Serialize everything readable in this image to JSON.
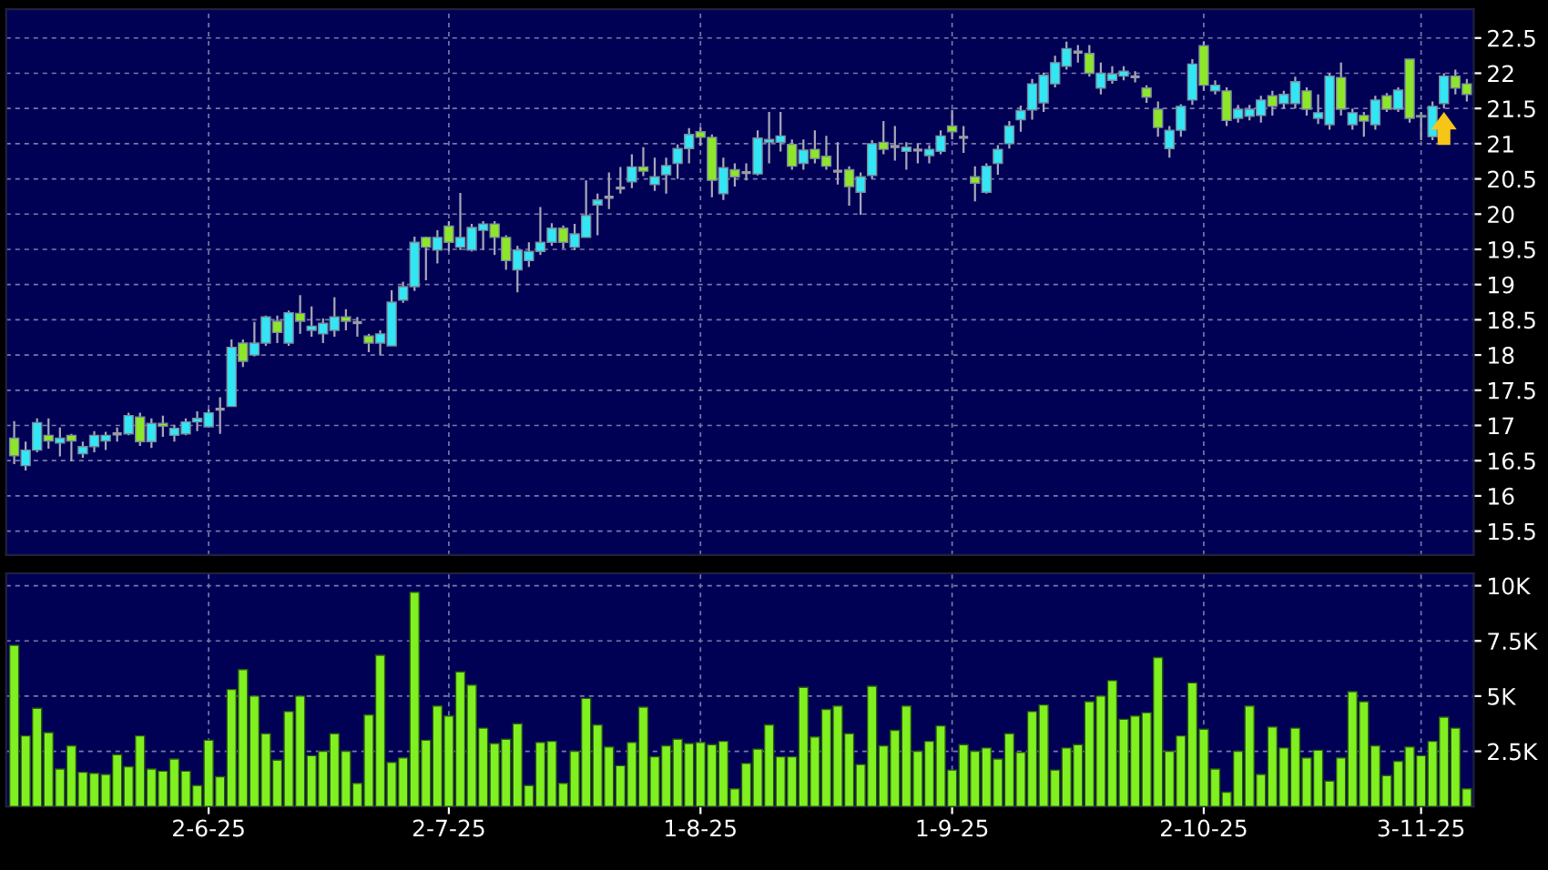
{
  "chart_data": [
    {
      "type": "candlestick",
      "ylim": [
        15.16,
        22.91
      ],
      "yticks": [
        15.5,
        16,
        16.5,
        17,
        17.5,
        18,
        18.5,
        19,
        19.5,
        20,
        20.5,
        21,
        21.5,
        22,
        22.5
      ],
      "grid": true,
      "tick_labels": "y",
      "categories": [
        null,
        null,
        null,
        null,
        null,
        null,
        null,
        null,
        null,
        null,
        null,
        null,
        null,
        null,
        null,
        null,
        null,
        null,
        null,
        null,
        null,
        null,
        null,
        null,
        null,
        null,
        null,
        null,
        null,
        null,
        null,
        null,
        null,
        null,
        null,
        null,
        null,
        null,
        null,
        null,
        null,
        null,
        null,
        null,
        null,
        null,
        null,
        null,
        null,
        null,
        null,
        null,
        null,
        null,
        null,
        null,
        null,
        null,
        null,
        null,
        null,
        null,
        null,
        null,
        null,
        null,
        null,
        null,
        null,
        null,
        null,
        null,
        null,
        null,
        null,
        null,
        null,
        null,
        null,
        null,
        null,
        null,
        null,
        null,
        null,
        null,
        null,
        null,
        null,
        null,
        null,
        null,
        null,
        null,
        null,
        null,
        null,
        null,
        null,
        null,
        null,
        null,
        null,
        null,
        null,
        null,
        null,
        null,
        null,
        null,
        null,
        null,
        null,
        null,
        null,
        null,
        null,
        null,
        null,
        null,
        null,
        null,
        null,
        null,
        null,
        null,
        null,
        null
      ],
      "ohlc": [
        [
          16.82,
          17.06,
          16.45,
          16.57
        ],
        [
          16.43,
          16.77,
          16.36,
          16.65
        ],
        [
          16.65,
          17.1,
          16.62,
          17.04
        ],
        [
          16.86,
          17.1,
          16.67,
          16.78
        ],
        [
          16.75,
          16.97,
          16.56,
          16.82
        ],
        [
          16.86,
          16.88,
          16.49,
          16.78
        ],
        [
          16.6,
          16.77,
          16.54,
          16.7
        ],
        [
          16.7,
          16.92,
          16.62,
          16.86
        ],
        [
          16.78,
          16.91,
          16.65,
          16.86
        ],
        [
          16.88,
          16.97,
          16.77,
          16.88
        ],
        [
          16.88,
          17.18,
          16.86,
          17.14
        ],
        [
          17.12,
          17.18,
          16.71,
          16.77
        ],
        [
          16.77,
          17.1,
          16.68,
          17.03
        ],
        [
          17.03,
          17.14,
          16.84,
          16.99
        ],
        [
          16.86,
          17.01,
          16.77,
          16.96
        ],
        [
          16.88,
          17.1,
          16.86,
          17.05
        ],
        [
          17.05,
          17.2,
          16.92,
          17.1
        ],
        [
          16.98,
          17.23,
          16.97,
          17.18
        ],
        [
          17.23,
          17.4,
          16.88,
          17.23
        ],
        [
          17.27,
          18.22,
          17.27,
          18.11
        ],
        [
          18.17,
          18.22,
          17.83,
          17.91
        ],
        [
          18.0,
          18.47,
          17.98,
          18.17
        ],
        [
          18.17,
          18.56,
          18.13,
          18.54
        ],
        [
          18.48,
          18.56,
          18.17,
          18.32
        ],
        [
          18.17,
          18.63,
          18.13,
          18.6
        ],
        [
          18.59,
          18.85,
          18.3,
          18.48
        ],
        [
          18.35,
          18.69,
          18.26,
          18.41
        ],
        [
          18.3,
          18.52,
          18.17,
          18.45
        ],
        [
          18.35,
          18.82,
          18.26,
          18.54
        ],
        [
          18.54,
          18.65,
          18.35,
          18.48
        ],
        [
          18.46,
          18.54,
          18.26,
          18.46
        ],
        [
          18.27,
          18.3,
          18.04,
          18.17
        ],
        [
          18.17,
          18.35,
          18.0,
          18.3
        ],
        [
          18.13,
          18.92,
          18.13,
          18.75
        ],
        [
          18.78,
          19.04,
          18.74,
          18.97
        ],
        [
          18.97,
          19.68,
          18.91,
          19.6
        ],
        [
          19.67,
          19.68,
          19.06,
          19.53
        ],
        [
          19.49,
          19.77,
          19.3,
          19.67
        ],
        [
          19.83,
          19.9,
          19.47,
          19.6
        ],
        [
          19.53,
          20.3,
          19.49,
          19.67
        ],
        [
          19.49,
          19.86,
          19.47,
          19.81
        ],
        [
          19.77,
          19.9,
          19.49,
          19.86
        ],
        [
          19.86,
          19.9,
          19.42,
          19.67
        ],
        [
          19.67,
          19.7,
          19.21,
          19.34
        ],
        [
          19.21,
          19.55,
          18.89,
          19.49
        ],
        [
          19.34,
          19.6,
          19.25,
          19.47
        ],
        [
          19.47,
          20.1,
          19.42,
          19.6
        ],
        [
          19.6,
          19.87,
          19.55,
          19.8
        ],
        [
          19.8,
          19.84,
          19.51,
          19.6
        ],
        [
          19.53,
          19.86,
          19.49,
          19.72
        ],
        [
          19.67,
          20.48,
          19.67,
          19.98
        ],
        [
          20.13,
          20.29,
          19.7,
          20.2
        ],
        [
          20.24,
          20.59,
          20.07,
          20.24
        ],
        [
          20.37,
          20.67,
          20.29,
          20.37
        ],
        [
          20.46,
          20.85,
          20.37,
          20.67
        ],
        [
          20.67,
          20.95,
          20.54,
          20.61
        ],
        [
          20.42,
          20.8,
          20.33,
          20.53
        ],
        [
          20.56,
          20.8,
          20.29,
          20.69
        ],
        [
          20.72,
          20.99,
          20.5,
          20.93
        ],
        [
          20.93,
          21.22,
          20.72,
          21.13
        ],
        [
          21.17,
          21.23,
          20.97,
          21.09
        ],
        [
          21.09,
          21.13,
          20.24,
          20.48
        ],
        [
          20.29,
          20.8,
          20.2,
          20.66
        ],
        [
          20.63,
          20.72,
          20.39,
          20.53
        ],
        [
          20.59,
          20.72,
          20.48,
          20.59
        ],
        [
          20.57,
          21.19,
          20.55,
          21.08
        ],
        [
          21.02,
          21.45,
          20.72,
          21.06
        ],
        [
          21.02,
          21.45,
          20.89,
          21.11
        ],
        [
          20.99,
          21.06,
          20.63,
          20.68
        ],
        [
          20.72,
          21.06,
          20.63,
          20.91
        ],
        [
          20.92,
          21.19,
          20.72,
          20.79
        ],
        [
          20.82,
          21.11,
          20.63,
          20.68
        ],
        [
          20.61,
          21.02,
          20.42,
          20.61
        ],
        [
          20.63,
          20.68,
          20.12,
          20.39
        ],
        [
          20.31,
          20.59,
          19.99,
          20.53
        ],
        [
          20.55,
          21.05,
          20.5,
          21.0
        ],
        [
          21.02,
          21.32,
          20.85,
          20.92
        ],
        [
          20.96,
          21.25,
          20.76,
          20.96
        ],
        [
          20.89,
          21.02,
          20.63,
          20.95
        ],
        [
          20.91,
          21.0,
          20.72,
          20.91
        ],
        [
          20.83,
          20.98,
          20.72,
          20.92
        ],
        [
          20.89,
          21.19,
          20.85,
          21.11
        ],
        [
          21.25,
          21.48,
          21.06,
          21.17
        ],
        [
          21.09,
          21.25,
          20.87,
          21.09
        ],
        [
          20.53,
          20.68,
          20.18,
          20.44
        ],
        [
          20.31,
          20.72,
          20.29,
          20.68
        ],
        [
          20.72,
          20.98,
          20.56,
          20.92
        ],
        [
          21.0,
          21.32,
          20.93,
          21.25
        ],
        [
          21.34,
          21.54,
          21.17,
          21.47
        ],
        [
          21.48,
          21.92,
          21.34,
          21.85
        ],
        [
          21.58,
          22.01,
          21.45,
          21.97
        ],
        [
          21.85,
          22.25,
          21.8,
          22.15
        ],
        [
          22.1,
          22.45,
          22.05,
          22.35
        ],
        [
          22.3,
          22.4,
          22.15,
          22.3
        ],
        [
          22.28,
          22.4,
          21.95,
          22.0
        ],
        [
          21.79,
          22.15,
          21.7,
          22.0
        ],
        [
          21.9,
          22.1,
          21.85,
          21.99
        ],
        [
          21.96,
          22.1,
          21.9,
          22.03
        ],
        [
          21.95,
          22.03,
          21.87,
          21.95
        ],
        [
          21.79,
          21.83,
          21.58,
          21.66
        ],
        [
          21.49,
          21.6,
          21.1,
          21.23
        ],
        [
          20.93,
          21.25,
          20.8,
          21.19
        ],
        [
          21.19,
          21.56,
          21.1,
          21.53
        ],
        [
          21.62,
          22.2,
          21.55,
          22.13
        ],
        [
          22.39,
          22.45,
          21.75,
          21.83
        ],
        [
          21.75,
          21.9,
          21.7,
          21.83
        ],
        [
          21.75,
          21.8,
          21.25,
          21.33
        ],
        [
          21.36,
          21.55,
          21.3,
          21.49
        ],
        [
          21.39,
          21.55,
          21.33,
          21.49
        ],
        [
          21.4,
          21.68,
          21.3,
          21.62
        ],
        [
          21.68,
          21.75,
          21.4,
          21.53
        ],
        [
          21.57,
          21.75,
          21.5,
          21.7
        ],
        [
          21.57,
          21.95,
          21.5,
          21.88
        ],
        [
          21.75,
          21.8,
          21.4,
          21.49
        ],
        [
          21.36,
          21.7,
          21.28,
          21.44
        ],
        [
          21.27,
          22.0,
          21.2,
          21.96
        ],
        [
          21.94,
          22.15,
          21.4,
          21.49
        ],
        [
          21.27,
          21.5,
          21.2,
          21.44
        ],
        [
          21.4,
          21.45,
          21.1,
          21.32
        ],
        [
          21.27,
          21.68,
          21.2,
          21.62
        ],
        [
          21.68,
          21.72,
          21.45,
          21.49
        ],
        [
          21.49,
          21.8,
          21.45,
          21.76
        ],
        [
          22.2,
          22.2,
          21.3,
          21.36
        ],
        [
          21.4,
          21.45,
          21.05,
          21.38
        ],
        [
          21.1,
          21.6,
          21.05,
          21.53
        ],
        [
          21.57,
          22.0,
          21.5,
          21.96
        ],
        [
          21.96,
          22.05,
          21.7,
          21.79
        ],
        [
          21.85,
          21.92,
          21.6,
          21.7
        ]
      ],
      "colors": [
        "#8ee62a",
        "#33e6f5",
        "#33e6f5",
        "#8ee62a",
        "#33e6f5",
        "#8ee62a",
        "#33e6f5",
        "#33e6f5",
        "#33e6f5",
        "#9a9aa8",
        "#33e6f5",
        "#8ee62a",
        "#33e6f5",
        "#8ee62a",
        "#33e6f5",
        "#33e6f5",
        "#33e6f5",
        "#33e6f5",
        "#9a9aa8",
        "#33e6f5",
        "#8ee62a",
        "#33e6f5",
        "#33e6f5",
        "#8ee62a",
        "#33e6f5",
        "#8ee62a",
        "#33e6f5",
        "#33e6f5",
        "#33e6f5",
        "#8ee62a",
        "#9a9aa8",
        "#8ee62a",
        "#33e6f5",
        "#33e6f5",
        "#33e6f5",
        "#33e6f5",
        "#8ee62a",
        "#33e6f5",
        "#8ee62a",
        "#33e6f5",
        "#33e6f5",
        "#33e6f5",
        "#8ee62a",
        "#8ee62a",
        "#33e6f5",
        "#33e6f5",
        "#33e6f5",
        "#33e6f5",
        "#8ee62a",
        "#33e6f5",
        "#33e6f5",
        "#33e6f5",
        "#9a9aa8",
        "#9a9aa8",
        "#33e6f5",
        "#8ee62a",
        "#33e6f5",
        "#33e6f5",
        "#33e6f5",
        "#33e6f5",
        "#8ee62a",
        "#8ee62a",
        "#33e6f5",
        "#8ee62a",
        "#9a9aa8",
        "#33e6f5",
        "#33e6f5",
        "#33e6f5",
        "#8ee62a",
        "#33e6f5",
        "#8ee62a",
        "#8ee62a",
        "#9a9aa8",
        "#8ee62a",
        "#33e6f5",
        "#33e6f5",
        "#8ee62a",
        "#9a9aa8",
        "#33e6f5",
        "#9a9aa8",
        "#33e6f5",
        "#33e6f5",
        "#8ee62a",
        "#9a9aa8",
        "#8ee62a",
        "#33e6f5",
        "#33e6f5",
        "#33e6f5",
        "#33e6f5",
        "#33e6f5",
        "#33e6f5",
        "#33e6f5",
        "#33e6f5",
        "#9a9aa8",
        "#8ee62a",
        "#33e6f5",
        "#33e6f5",
        "#33e6f5",
        "#9a9aa8",
        "#8ee62a",
        "#8ee62a",
        "#33e6f5",
        "#33e6f5",
        "#33e6f5",
        "#8ee62a",
        "#33e6f5",
        "#8ee62a",
        "#33e6f5",
        "#33e6f5",
        "#33e6f5",
        "#8ee62a",
        "#33e6f5",
        "#33e6f5",
        "#8ee62a",
        "#33e6f5",
        "#33e6f5",
        "#8ee62a",
        "#33e6f5",
        "#8ee62a",
        "#33e6f5",
        "#8ee62a",
        "#33e6f5",
        "#8ee62a",
        "#8ee62a",
        "#33e6f5",
        "#33e6f5",
        "#8ee62a",
        "#8ee62a"
      ]
    },
    {
      "type": "bar",
      "ylim": [
        0,
        10560
      ],
      "yticks": [
        {
          "value": 2500,
          "label": "2.5K"
        },
        {
          "value": 5000,
          "label": "5K"
        },
        {
          "value": 7500,
          "label": "7.5K"
        },
        {
          "value": 10000,
          "label": "10K"
        }
      ],
      "grid": true,
      "color": "#80f020",
      "categories": [
        null,
        null,
        null,
        null,
        null,
        null,
        null,
        null,
        null,
        null,
        null,
        null,
        null,
        null,
        null,
        null,
        null,
        "2-6-25",
        null,
        null,
        null,
        null,
        null,
        null,
        null,
        null,
        null,
        null,
        null,
        null,
        null,
        null,
        null,
        null,
        null,
        null,
        null,
        null,
        "2-7-25",
        null,
        null,
        null,
        null,
        null,
        null,
        null,
        null,
        null,
        null,
        null,
        null,
        null,
        null,
        null,
        null,
        null,
        null,
        null,
        null,
        null,
        "1-8-25",
        null,
        null,
        null,
        null,
        null,
        null,
        null,
        null,
        null,
        null,
        null,
        null,
        null,
        null,
        null,
        null,
        null,
        null,
        null,
        null,
        null,
        "1-9-25",
        null,
        null,
        null,
        null,
        null,
        null,
        null,
        null,
        null,
        null,
        null,
        null,
        null,
        null,
        null,
        null,
        null,
        null,
        null,
        null,
        null,
        "2-10-25",
        null,
        null,
        null,
        null,
        null,
        null,
        null,
        null,
        null,
        null,
        null,
        null,
        null,
        null,
        null,
        null,
        null,
        null,
        "3-11-25",
        null,
        null,
        null,
        null
      ],
      "values": [
        7300,
        3200,
        4450,
        3350,
        1700,
        2750,
        1550,
        1500,
        1450,
        2350,
        1800,
        3200,
        1700,
        1600,
        2150,
        1600,
        950,
        3000,
        1350,
        5300,
        6200,
        5000,
        3300,
        2100,
        4300,
        5000,
        2300,
        2500,
        3300,
        2500,
        1050,
        4150,
        6850,
        2000,
        2200,
        9700,
        3000,
        4550,
        4100,
        6100,
        5500,
        3550,
        2850,
        3050,
        3750,
        950,
        2900,
        2950,
        1050,
        2500,
        4900,
        3700,
        2700,
        1850,
        2900,
        4500,
        2250,
        2750,
        3050,
        2850,
        2900,
        2800,
        2950,
        800,
        1950,
        2600,
        3700,
        2250,
        2250,
        5400,
        3150,
        4400,
        4550,
        3300,
        1900,
        5450,
        2750,
        3450,
        4550,
        2500,
        2950,
        3650,
        1650,
        2800,
        2500,
        2650,
        2150,
        3300,
        2450,
        4300,
        4600,
        1650,
        2650,
        2800,
        4750,
        5000,
        5700,
        3950,
        4100,
        4250,
        6750,
        2500,
        3200,
        5600,
        3500,
        1700,
        650,
        2500,
        4550,
        1450,
        3600,
        2650,
        3550,
        2200,
        2550,
        1150,
        2200,
        5200,
        4750,
        2750,
        1400,
        2050,
        2700,
        2300,
        2950,
        4050,
        3550,
        800
      ]
    }
  ]
}
